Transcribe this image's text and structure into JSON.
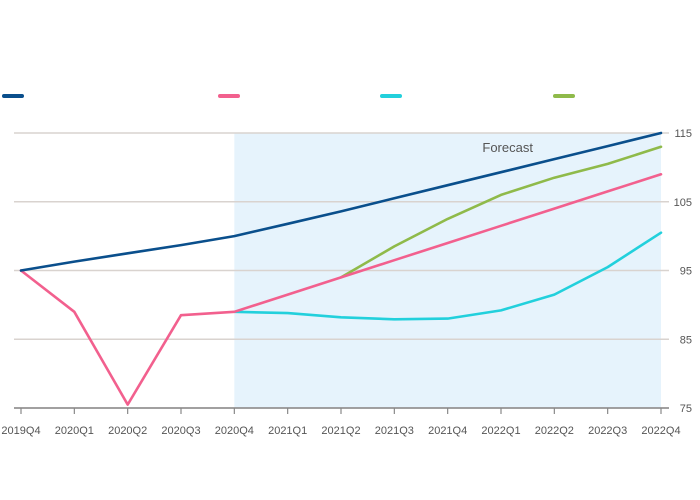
{
  "chart_data": {
    "type": "line",
    "title": "",
    "subtitle": "",
    "x": [
      "2019Q4",
      "2020Q1",
      "2020Q2",
      "2020Q3",
      "2020Q4",
      "2021Q1",
      "2021Q2",
      "2021Q3",
      "2021Q4",
      "2022Q1",
      "2022Q2",
      "2022Q3",
      "2022Q4"
    ],
    "ylim": [
      75,
      115
    ],
    "yticks": [
      75,
      85,
      95,
      105,
      115
    ],
    "forecast_start_index": 4,
    "annotation": "Forecast",
    "grid": true,
    "legend_position": "top",
    "series": [
      {
        "name": "",
        "color": "#0a4f8c",
        "values": [
          95,
          96.3,
          97.5,
          98.7,
          100,
          101.8,
          103.6,
          105.5,
          107.4,
          109.3,
          111.2,
          113.1,
          115
        ]
      },
      {
        "name": "",
        "color": "#f2608e",
        "values": [
          95,
          89,
          75.5,
          88.5,
          89,
          91.5,
          94,
          96.5,
          99,
          101.5,
          104,
          106.5,
          109
        ]
      },
      {
        "name": "",
        "color": "#22d0dc",
        "values": [
          null,
          null,
          null,
          null,
          89,
          88.8,
          88.2,
          87.9,
          88,
          89.2,
          91.5,
          95.5,
          100.5
        ]
      },
      {
        "name": "",
        "color": "#8fba4a",
        "values": [
          null,
          null,
          null,
          null,
          null,
          null,
          94,
          98.5,
          102.5,
          106,
          108.5,
          110.5,
          113
        ]
      }
    ]
  },
  "source": "",
  "note": ""
}
